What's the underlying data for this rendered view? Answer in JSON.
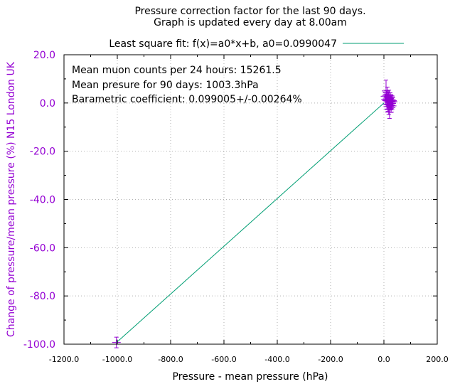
{
  "chart_data": {
    "type": "scatter",
    "title_lines": [
      "Pressure correction factor for the last 90 days.",
      "Graph is updated every day at 8.00am"
    ],
    "xlabel": "Pressure - mean pressure (hPa)",
    "ylabel": "Change of pressure/mean pressure (%) N15 London UK",
    "xlim": [
      -1200,
      200
    ],
    "ylim": [
      -100,
      20
    ],
    "xticks": [
      -1200,
      -1000,
      -800,
      -600,
      -400,
      -200,
      0,
      200
    ],
    "xtick_labels": [
      "-1200.0",
      "-1000.0",
      "-800.0",
      "-600.0",
      "-400.0",
      "-200.0",
      "0.0",
      "200.0"
    ],
    "yticks": [
      20,
      0,
      -20,
      -40,
      -60,
      -80,
      -100
    ],
    "ytick_labels": [
      "20.0",
      "0.0",
      "-20.0",
      "-40.0",
      "-60.0",
      "-80.0",
      "-100.0"
    ],
    "grid": true,
    "legend": {
      "label": "Least square fit: f(x)=a0*x+b, a0=0.0990047",
      "placement": "top-center",
      "color": "#009e73"
    },
    "annotations": [
      "Mean muon counts per 24 hours: 15261.5",
      "Mean presure for 90 days: 1003.3hPa",
      "Barametric coefficient: 0.099005+/-0.00264%"
    ],
    "fit": {
      "a0": 0.0990047,
      "b": 0.0,
      "x_range": [
        -1003.3,
        0
      ]
    },
    "series": [
      {
        "name": "data",
        "color": "#9400d3",
        "points": [
          {
            "x": -1003.3,
            "y": -99.3,
            "yerr": 2.2
          },
          {
            "x": 4.0,
            "y": 2.8,
            "yerr": 1.5
          },
          {
            "x": 6.0,
            "y": 1.5,
            "yerr": 2.0
          },
          {
            "x": 8.0,
            "y": 5.0,
            "yerr": 4.5
          },
          {
            "x": 9.5,
            "y": 3.2,
            "yerr": 2.0
          },
          {
            "x": 10.0,
            "y": 1.0,
            "yerr": 1.8
          },
          {
            "x": 11.0,
            "y": -0.5,
            "yerr": 2.2
          },
          {
            "x": 12.0,
            "y": 2.0,
            "yerr": 1.6
          },
          {
            "x": 13.0,
            "y": 4.2,
            "yerr": 2.4
          },
          {
            "x": 14.0,
            "y": 0.5,
            "yerr": 1.9
          },
          {
            "x": 15.0,
            "y": -1.5,
            "yerr": 2.0
          },
          {
            "x": 16.0,
            "y": 2.5,
            "yerr": 2.1
          },
          {
            "x": 17.0,
            "y": 1.2,
            "yerr": 1.7
          },
          {
            "x": 18.0,
            "y": -2.5,
            "yerr": 2.3
          },
          {
            "x": 19.0,
            "y": 3.5,
            "yerr": 1.8
          },
          {
            "x": 20.0,
            "y": 0.0,
            "yerr": 2.0
          },
          {
            "x": 21.0,
            "y": -3.8,
            "yerr": 2.6
          },
          {
            "x": 22.0,
            "y": 1.8,
            "yerr": 1.6
          },
          {
            "x": 23.0,
            "y": -1.0,
            "yerr": 1.9
          },
          {
            "x": 24.0,
            "y": 2.2,
            "yerr": 2.0
          },
          {
            "x": 25.0,
            "y": -0.8,
            "yerr": 1.8
          },
          {
            "x": 26.0,
            "y": 0.8,
            "yerr": 2.1
          },
          {
            "x": 27.0,
            "y": -2.0,
            "yerr": 1.9
          },
          {
            "x": 28.0,
            "y": 1.4,
            "yerr": 1.7
          },
          {
            "x": 29.0,
            "y": -0.2,
            "yerr": 2.0
          },
          {
            "x": 30.0,
            "y": 0.3,
            "yerr": 1.8
          },
          {
            "x": 31.0,
            "y": -1.2,
            "yerr": 1.6
          },
          {
            "x": 32.0,
            "y": 1.0,
            "yerr": 1.9
          },
          {
            "x": 34.0,
            "y": 0.6,
            "yerr": 1.7
          }
        ]
      }
    ]
  }
}
